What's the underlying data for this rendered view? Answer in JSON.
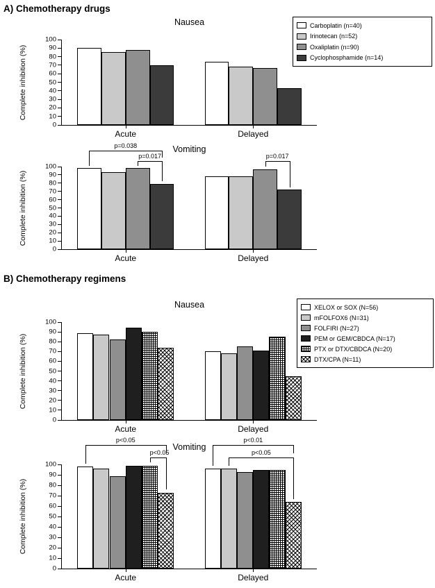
{
  "figure": {
    "section_a_title": "A) Chemotherapy drugs",
    "section_b_title": "B) Chemotherapy regimens"
  },
  "palette": {
    "white": "#ffffff",
    "light_gray": "#c9c9c9",
    "medium_gray": "#8f8f8f",
    "dark_gray": "#3b3b3b",
    "near_black": "#1f1f1f",
    "axis": "#000000"
  },
  "chart_data": [
    {
      "id": "drugs-nausea",
      "type": "bar",
      "title": "Nausea",
      "ylabel": "Complete inhibition (%)",
      "ylim": [
        0,
        100
      ],
      "ytick_step": 10,
      "grid": false,
      "legend_position": "right",
      "categories": [
        "Acute",
        "Delayed"
      ],
      "series": [
        {
          "name": "Carboplatin (n=40)",
          "pattern": "white",
          "values": [
            90,
            74
          ]
        },
        {
          "name": "Irinotecan (n=52)",
          "pattern": "lightgray",
          "values": [
            85,
            68
          ]
        },
        {
          "name": "Oxaliplatin (n=90)",
          "pattern": "gray",
          "values": [
            88,
            67
          ]
        },
        {
          "name": "Cyclophosphamide (n=14)",
          "pattern": "darkgray",
          "values": [
            70,
            43
          ]
        }
      ],
      "annotations": []
    },
    {
      "id": "drugs-vomiting",
      "type": "bar",
      "title": "Vomiting",
      "ylabel": "Complete inhibition (%)",
      "ylim": [
        0,
        100
      ],
      "ytick_step": 10,
      "grid": false,
      "categories": [
        "Acute",
        "Delayed"
      ],
      "series": [
        {
          "name": "Carboplatin (n=40)",
          "pattern": "white",
          "values": [
            98,
            88
          ]
        },
        {
          "name": "Irinotecan (n=52)",
          "pattern": "lightgray",
          "values": [
            93,
            88
          ]
        },
        {
          "name": "Oxaliplatin (n=90)",
          "pattern": "gray",
          "values": [
            98,
            97
          ]
        },
        {
          "name": "Cyclophosphamide (n=14)",
          "pattern": "darkgray",
          "values": [
            79,
            72
          ]
        }
      ],
      "annotations": [
        {
          "label": "p=0.038",
          "category": 0,
          "from": 0,
          "to": 3,
          "y": 119,
          "drops": [
            101,
            111
          ]
        },
        {
          "label": "p=0.017",
          "category": 0,
          "from": 2,
          "to": 3,
          "y": 107,
          "drops": [
            101,
            82
          ]
        },
        {
          "label": "p=0.017",
          "category": 1,
          "from": 2,
          "to": 3,
          "y": 107,
          "drops": [
            100,
            75
          ]
        }
      ]
    },
    {
      "id": "regimens-nausea",
      "type": "bar",
      "title": "Nausea",
      "ylabel": "Complete inhibition (%)",
      "ylim": [
        0,
        100
      ],
      "ytick_step": 10,
      "grid": false,
      "legend_position": "right",
      "categories": [
        "Acute",
        "Delayed"
      ],
      "series": [
        {
          "name": "XELOX or SOX (N=56)",
          "pattern": "white",
          "values": [
            89,
            70
          ]
        },
        {
          "name": "mFOLFOX6 (N=31)",
          "pattern": "lightgray",
          "values": [
            87,
            68
          ]
        },
        {
          "name": "FOLFIRI (N=27)",
          "pattern": "gray",
          "values": [
            82,
            75
          ]
        },
        {
          "name": "PEM or GEM/CBDCA (N=17)",
          "pattern": "black",
          "values": [
            94,
            71
          ]
        },
        {
          "name": "PTX or DTX/CBDCA (N=20)",
          "pattern": "crosshatch",
          "values": [
            90,
            85
          ]
        },
        {
          "name": "DTX/CPA (N=11)",
          "pattern": "diagonal_crosshatch",
          "values": [
            74,
            45
          ]
        }
      ],
      "annotations": []
    },
    {
      "id": "regimens-vomiting",
      "type": "bar",
      "title": "Vomiting",
      "ylabel": "Complete inhibition (%)",
      "ylim": [
        0,
        100
      ],
      "ytick_step": 10,
      "grid": false,
      "categories": [
        "Acute",
        "Delayed"
      ],
      "series": [
        {
          "name": "XELOX or SOX (N=56)",
          "pattern": "white",
          "values": [
            98,
            96
          ]
        },
        {
          "name": "mFOLFOX6 (N=31)",
          "pattern": "lightgray",
          "values": [
            96,
            96
          ]
        },
        {
          "name": "FOLFIRI (N=27)",
          "pattern": "gray",
          "values": [
            89,
            93
          ]
        },
        {
          "name": "PEM or GEM/CBDCA (N=17)",
          "pattern": "black",
          "values": [
            99,
            95
          ]
        },
        {
          "name": "PTX or DTX/CBDCA (N=20)",
          "pattern": "crosshatch",
          "values": [
            99,
            95
          ]
        },
        {
          "name": "DTX/CPA (N=11)",
          "pattern": "diagonal_crosshatch",
          "values": [
            73,
            64
          ]
        }
      ],
      "annotations": [
        {
          "label": "p<0.05",
          "category": 0,
          "from": 0,
          "to": 5,
          "y": 119,
          "drops": [
            101,
            111
          ]
        },
        {
          "label": "p<0.05",
          "category": 0,
          "from": 4,
          "to": 5,
          "y": 107,
          "drops": [
            102,
            76
          ]
        },
        {
          "label": "p<0.01",
          "category": 1,
          "from": 0,
          "to": 5,
          "y": 119,
          "drops": [
            99,
            111
          ]
        },
        {
          "label": "p<0.05",
          "category": 1,
          "from": 1,
          "to": 5,
          "y": 107,
          "drops": [
            99,
            67
          ]
        }
      ]
    }
  ]
}
